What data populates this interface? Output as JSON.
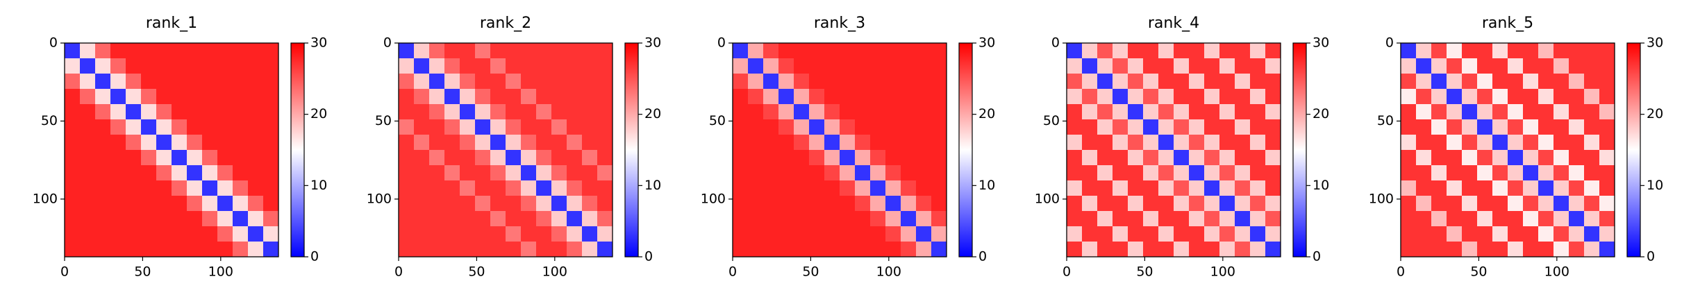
{
  "chart_data": [
    {
      "type": "heatmap",
      "title": "rank_1",
      "xlim": [
        0,
        137
      ],
      "ylim": [
        137,
        0
      ],
      "xticks": [
        0,
        50,
        100
      ],
      "yticks": [
        0,
        50,
        100
      ],
      "clim": [
        0,
        30
      ],
      "cticks": [
        0,
        10,
        20,
        30
      ],
      "colormap": [
        "#0000ff",
        "#ffffff",
        "#ff0000"
      ],
      "values": [
        [
          3,
          17,
          24,
          28,
          28,
          28,
          28,
          28,
          28,
          28,
          28,
          28,
          28,
          28
        ],
        [
          17,
          3,
          17,
          24,
          28,
          28,
          28,
          28,
          28,
          28,
          28,
          28,
          28,
          28
        ],
        [
          24,
          17,
          3,
          17,
          24,
          28,
          28,
          28,
          28,
          28,
          28,
          28,
          28,
          28
        ],
        [
          28,
          24,
          17,
          3,
          17,
          24,
          28,
          28,
          28,
          28,
          28,
          28,
          28,
          28
        ],
        [
          28,
          28,
          24,
          17,
          3,
          17,
          24,
          28,
          28,
          28,
          28,
          28,
          28,
          28
        ],
        [
          28,
          28,
          28,
          24,
          17,
          3,
          17,
          24,
          28,
          28,
          28,
          28,
          28,
          28
        ],
        [
          28,
          28,
          28,
          28,
          24,
          17,
          3,
          17,
          24,
          28,
          28,
          28,
          28,
          28
        ],
        [
          28,
          28,
          28,
          28,
          28,
          24,
          17,
          3,
          17,
          24,
          28,
          28,
          28,
          28
        ],
        [
          28,
          28,
          28,
          28,
          28,
          28,
          24,
          17,
          3,
          17,
          24,
          28,
          28,
          28
        ],
        [
          28,
          28,
          28,
          28,
          28,
          28,
          28,
          24,
          17,
          3,
          17,
          24,
          28,
          28
        ],
        [
          28,
          28,
          28,
          28,
          28,
          28,
          28,
          28,
          24,
          17,
          3,
          17,
          24,
          28
        ],
        [
          28,
          28,
          28,
          28,
          28,
          28,
          28,
          28,
          28,
          24,
          17,
          3,
          17,
          24
        ],
        [
          28,
          28,
          28,
          28,
          28,
          28,
          28,
          28,
          28,
          28,
          24,
          17,
          3,
          17
        ],
        [
          28,
          28,
          28,
          28,
          28,
          28,
          28,
          28,
          28,
          28,
          28,
          24,
          17,
          3
        ]
      ]
    },
    {
      "type": "heatmap",
      "title": "rank_2",
      "xlim": [
        0,
        137
      ],
      "ylim": [
        137,
        0
      ],
      "xticks": [
        0,
        50,
        100
      ],
      "yticks": [
        0,
        50,
        100
      ],
      "clim": [
        0,
        30
      ],
      "cticks": [
        0,
        10,
        20,
        30
      ],
      "colormap": [
        "#0000ff",
        "#ffffff",
        "#ff0000"
      ],
      "values": [
        [
          3,
          18,
          24,
          27,
          27,
          23,
          27,
          27,
          27,
          27,
          27,
          27,
          27,
          27
        ],
        [
          18,
          3,
          18,
          24,
          27,
          27,
          23,
          27,
          27,
          27,
          27,
          27,
          27,
          27
        ],
        [
          24,
          18,
          3,
          18,
          24,
          27,
          27,
          23,
          27,
          27,
          27,
          27,
          27,
          27
        ],
        [
          27,
          24,
          18,
          3,
          18,
          24,
          27,
          27,
          23,
          27,
          27,
          27,
          27,
          27
        ],
        [
          27,
          27,
          24,
          18,
          3,
          18,
          24,
          27,
          27,
          23,
          27,
          27,
          27,
          27
        ],
        [
          23,
          27,
          27,
          24,
          18,
          3,
          18,
          24,
          27,
          27,
          23,
          27,
          27,
          27
        ],
        [
          27,
          23,
          27,
          27,
          24,
          18,
          3,
          18,
          24,
          27,
          27,
          23,
          27,
          27
        ],
        [
          27,
          27,
          23,
          27,
          27,
          24,
          18,
          3,
          18,
          24,
          27,
          27,
          23,
          27
        ],
        [
          27,
          27,
          27,
          23,
          27,
          27,
          24,
          18,
          3,
          18,
          24,
          27,
          27,
          23
        ],
        [
          27,
          27,
          27,
          27,
          23,
          27,
          27,
          24,
          18,
          3,
          18,
          24,
          27,
          27
        ],
        [
          27,
          27,
          27,
          27,
          27,
          23,
          27,
          27,
          24,
          18,
          3,
          18,
          24,
          27
        ],
        [
          27,
          27,
          27,
          27,
          27,
          27,
          23,
          27,
          27,
          24,
          18,
          3,
          18,
          24
        ],
        [
          27,
          27,
          27,
          27,
          27,
          27,
          27,
          23,
          27,
          27,
          24,
          18,
          3,
          18
        ],
        [
          27,
          27,
          27,
          27,
          27,
          27,
          27,
          27,
          23,
          27,
          27,
          24,
          18,
          3
        ]
      ]
    },
    {
      "type": "heatmap",
      "title": "rank_3",
      "xlim": [
        0,
        137
      ],
      "ylim": [
        137,
        0
      ],
      "xticks": [
        0,
        50,
        100
      ],
      "yticks": [
        0,
        50,
        100
      ],
      "clim": [
        0,
        30
      ],
      "cticks": [
        0,
        10,
        20,
        30
      ],
      "colormap": [
        "#0000ff",
        "#ffffff",
        "#ff0000"
      ],
      "values": [
        [
          3,
          20,
          26,
          28,
          28,
          28,
          28,
          28,
          28,
          28,
          28,
          28,
          28,
          28
        ],
        [
          20,
          3,
          20,
          26,
          28,
          28,
          28,
          28,
          28,
          28,
          28,
          28,
          28,
          28
        ],
        [
          26,
          20,
          3,
          20,
          26,
          28,
          28,
          28,
          28,
          28,
          28,
          28,
          28,
          28
        ],
        [
          28,
          26,
          20,
          3,
          20,
          26,
          28,
          28,
          28,
          28,
          28,
          28,
          28,
          28
        ],
        [
          28,
          28,
          26,
          20,
          3,
          20,
          26,
          28,
          28,
          28,
          28,
          28,
          28,
          28
        ],
        [
          28,
          28,
          28,
          26,
          20,
          3,
          20,
          26,
          28,
          28,
          28,
          28,
          28,
          28
        ],
        [
          28,
          28,
          28,
          28,
          26,
          20,
          3,
          20,
          26,
          28,
          28,
          28,
          28,
          28
        ],
        [
          28,
          28,
          28,
          28,
          28,
          26,
          20,
          3,
          20,
          26,
          28,
          28,
          28,
          28
        ],
        [
          28,
          28,
          28,
          28,
          28,
          28,
          26,
          20,
          3,
          20,
          26,
          28,
          28,
          28
        ],
        [
          28,
          28,
          28,
          28,
          28,
          28,
          28,
          26,
          20,
          3,
          20,
          26,
          28,
          28
        ],
        [
          28,
          28,
          28,
          28,
          28,
          28,
          28,
          28,
          26,
          20,
          3,
          20,
          26,
          28
        ],
        [
          28,
          28,
          28,
          28,
          28,
          28,
          28,
          28,
          28,
          26,
          20,
          3,
          20,
          26
        ],
        [
          28,
          28,
          28,
          28,
          28,
          28,
          28,
          28,
          28,
          28,
          26,
          20,
          3,
          20
        ],
        [
          28,
          28,
          28,
          28,
          28,
          28,
          28,
          28,
          28,
          28,
          28,
          26,
          20,
          3
        ]
      ]
    },
    {
      "type": "heatmap",
      "title": "rank_4",
      "xlim": [
        0,
        137
      ],
      "ylim": [
        137,
        0
      ],
      "xticks": [
        0,
        50,
        100
      ],
      "yticks": [
        0,
        50,
        100
      ],
      "clim": [
        0,
        30
      ],
      "cticks": [
        0,
        10,
        20,
        30
      ],
      "colormap": [
        "#0000ff",
        "#ffffff",
        "#ff0000"
      ],
      "values": [
        [
          3,
          18,
          25,
          18,
          27,
          27,
          18,
          27,
          27,
          18,
          27,
          27,
          18,
          27
        ],
        [
          18,
          3,
          18,
          25,
          18,
          27,
          27,
          18,
          27,
          27,
          18,
          27,
          27,
          18
        ],
        [
          25,
          18,
          3,
          18,
          25,
          18,
          27,
          27,
          18,
          27,
          27,
          18,
          27,
          27
        ],
        [
          18,
          25,
          18,
          3,
          18,
          25,
          18,
          27,
          27,
          18,
          27,
          27,
          18,
          27
        ],
        [
          27,
          18,
          25,
          18,
          3,
          18,
          25,
          18,
          27,
          27,
          18,
          27,
          27,
          18
        ],
        [
          27,
          27,
          18,
          25,
          18,
          3,
          18,
          25,
          18,
          27,
          27,
          18,
          27,
          27
        ],
        [
          18,
          27,
          27,
          18,
          25,
          18,
          3,
          18,
          25,
          18,
          27,
          27,
          18,
          27
        ],
        [
          27,
          18,
          27,
          27,
          18,
          25,
          18,
          3,
          18,
          25,
          18,
          27,
          27,
          18
        ],
        [
          27,
          27,
          18,
          27,
          27,
          18,
          25,
          18,
          3,
          18,
          25,
          18,
          27,
          27
        ],
        [
          18,
          27,
          27,
          18,
          27,
          27,
          18,
          25,
          18,
          3,
          18,
          25,
          18,
          27
        ],
        [
          27,
          18,
          27,
          27,
          18,
          27,
          27,
          18,
          25,
          18,
          3,
          18,
          25,
          18
        ],
        [
          27,
          27,
          18,
          27,
          27,
          18,
          27,
          27,
          18,
          25,
          18,
          3,
          18,
          25
        ],
        [
          18,
          27,
          27,
          18,
          27,
          27,
          18,
          27,
          27,
          18,
          25,
          18,
          3,
          18
        ],
        [
          27,
          18,
          27,
          27,
          18,
          27,
          27,
          18,
          27,
          27,
          18,
          25,
          18,
          3
        ]
      ]
    },
    {
      "type": "heatmap",
      "title": "rank_5",
      "xlim": [
        0,
        137
      ],
      "ylim": [
        137,
        0
      ],
      "xticks": [
        0,
        50,
        100
      ],
      "yticks": [
        0,
        50,
        100
      ],
      "clim": [
        0,
        30
      ],
      "cticks": [
        0,
        10,
        20,
        30
      ],
      "colormap": [
        "#0000ff",
        "#ffffff",
        "#ff0000"
      ],
      "values": [
        [
          3,
          18,
          26,
          16,
          27,
          27,
          17,
          27,
          27,
          19,
          27,
          27,
          27,
          27
        ],
        [
          18,
          3,
          18,
          26,
          16,
          27,
          27,
          17,
          27,
          27,
          19,
          27,
          27,
          27
        ],
        [
          26,
          18,
          3,
          18,
          26,
          16,
          27,
          27,
          17,
          27,
          27,
          19,
          27,
          27
        ],
        [
          16,
          26,
          18,
          3,
          18,
          26,
          16,
          27,
          27,
          17,
          27,
          27,
          19,
          27
        ],
        [
          27,
          16,
          26,
          18,
          3,
          18,
          26,
          16,
          27,
          27,
          17,
          27,
          27,
          19
        ],
        [
          27,
          27,
          16,
          26,
          18,
          3,
          18,
          26,
          16,
          27,
          27,
          17,
          27,
          27
        ],
        [
          17,
          27,
          27,
          16,
          26,
          18,
          3,
          18,
          26,
          16,
          27,
          27,
          17,
          27
        ],
        [
          27,
          17,
          27,
          27,
          16,
          26,
          18,
          3,
          18,
          26,
          16,
          27,
          27,
          17
        ],
        [
          27,
          27,
          17,
          27,
          27,
          16,
          26,
          18,
          3,
          18,
          26,
          16,
          27,
          27
        ],
        [
          19,
          27,
          27,
          17,
          27,
          27,
          16,
          26,
          18,
          3,
          18,
          26,
          16,
          27
        ],
        [
          27,
          19,
          27,
          27,
          17,
          27,
          27,
          16,
          26,
          18,
          3,
          18,
          26,
          16
        ],
        [
          27,
          27,
          19,
          27,
          27,
          17,
          27,
          27,
          16,
          26,
          18,
          3,
          18,
          26
        ],
        [
          27,
          27,
          27,
          19,
          27,
          27,
          17,
          27,
          27,
          16,
          26,
          18,
          3,
          18
        ],
        [
          27,
          27,
          27,
          27,
          19,
          27,
          27,
          17,
          27,
          27,
          16,
          26,
          18,
          3
        ]
      ]
    }
  ]
}
